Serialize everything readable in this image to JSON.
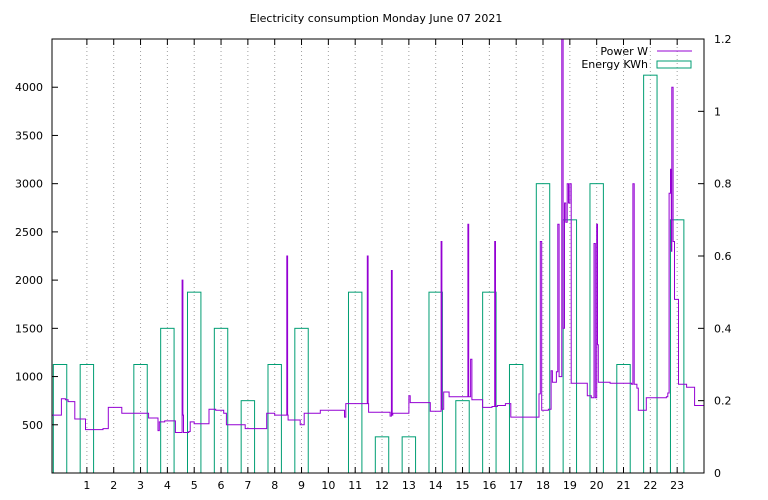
{
  "chart_data": {
    "type": "line",
    "title": "Electricity consumption Monday June 07 2021",
    "x_axis": {
      "range": [
        -0.3,
        24.0
      ],
      "ticks": [
        1,
        2,
        3,
        4,
        5,
        6,
        7,
        8,
        9,
        10,
        11,
        12,
        13,
        14,
        15,
        16,
        17,
        18,
        19,
        20,
        21,
        22,
        23
      ],
      "grid": true
    },
    "y_left": {
      "range": [
        0,
        4500
      ],
      "ticks": [
        500,
        1000,
        1500,
        2000,
        2500,
        3000,
        3500,
        4000
      ]
    },
    "y_right": {
      "range": [
        0,
        1.2
      ],
      "ticks": [
        "0",
        "0.2",
        "0.4",
        "0.6",
        "0.8",
        "1",
        "1.2"
      ],
      "tick_values": [
        0,
        0.2,
        0.4,
        0.6,
        0.8,
        1.0,
        1.2
      ]
    },
    "legend": {
      "position": "top-right"
    },
    "series": [
      {
        "name": "Power W",
        "color": "#9400d3",
        "axis": "left",
        "type": "step-line",
        "points": [
          [
            -0.3,
            600
          ],
          [
            0.0,
            600
          ],
          [
            0.05,
            770
          ],
          [
            0.2,
            760
          ],
          [
            0.3,
            740
          ],
          [
            0.5,
            740
          ],
          [
            0.55,
            560
          ],
          [
            0.9,
            560
          ],
          [
            0.95,
            450
          ],
          [
            1.2,
            450
          ],
          [
            1.6,
            460
          ],
          [
            1.8,
            680
          ],
          [
            2.2,
            680
          ],
          [
            2.3,
            620
          ],
          [
            2.5,
            620
          ],
          [
            3.2,
            620
          ],
          [
            3.3,
            570
          ],
          [
            3.6,
            570
          ],
          [
            3.65,
            440
          ],
          [
            3.7,
            530
          ],
          [
            3.9,
            540
          ],
          [
            4.2,
            540
          ],
          [
            4.3,
            420
          ],
          [
            4.5,
            420
          ],
          [
            4.55,
            2000
          ],
          [
            4.58,
            600
          ],
          [
            4.6,
            420
          ],
          [
            4.8,
            430
          ],
          [
            4.85,
            530
          ],
          [
            5.0,
            510
          ],
          [
            5.2,
            510
          ],
          [
            5.5,
            510
          ],
          [
            5.55,
            660
          ],
          [
            5.8,
            650
          ],
          [
            6.1,
            620
          ],
          [
            6.2,
            500
          ],
          [
            6.8,
            500
          ],
          [
            6.9,
            460
          ],
          [
            7.6,
            460
          ],
          [
            7.7,
            620
          ],
          [
            7.8,
            620
          ],
          [
            8.0,
            600
          ],
          [
            8.4,
            600
          ],
          [
            8.45,
            2250
          ],
          [
            8.48,
            600
          ],
          [
            8.5,
            550
          ],
          [
            8.9,
            550
          ],
          [
            8.95,
            500
          ],
          [
            9.1,
            620
          ],
          [
            9.5,
            620
          ],
          [
            9.7,
            650
          ],
          [
            10.5,
            650
          ],
          [
            10.6,
            580
          ],
          [
            10.65,
            720
          ],
          [
            11.4,
            720
          ],
          [
            11.45,
            2250
          ],
          [
            11.48,
            720
          ],
          [
            11.5,
            630
          ],
          [
            11.8,
            630
          ],
          [
            12.2,
            630
          ],
          [
            12.3,
            590
          ],
          [
            12.35,
            2100
          ],
          [
            12.38,
            600
          ],
          [
            12.4,
            620
          ],
          [
            12.9,
            620
          ],
          [
            13.0,
            800
          ],
          [
            13.05,
            730
          ],
          [
            13.7,
            730
          ],
          [
            13.8,
            640
          ],
          [
            14.1,
            640
          ],
          [
            14.2,
            2400
          ],
          [
            14.23,
            660
          ],
          [
            14.3,
            840
          ],
          [
            14.5,
            790
          ],
          [
            15.1,
            790
          ],
          [
            15.2,
            2580
          ],
          [
            15.23,
            790
          ],
          [
            15.3,
            1180
          ],
          [
            15.35,
            760
          ],
          [
            15.7,
            760
          ],
          [
            15.75,
            680
          ],
          [
            16.1,
            690
          ],
          [
            16.2,
            2400
          ],
          [
            16.23,
            690
          ],
          [
            16.3,
            700
          ],
          [
            16.6,
            720
          ],
          [
            16.8,
            580
          ],
          [
            17.8,
            580
          ],
          [
            17.85,
            820
          ],
          [
            17.9,
            2400
          ],
          [
            17.95,
            650
          ],
          [
            18.2,
            660
          ],
          [
            18.3,
            1060
          ],
          [
            18.35,
            940
          ],
          [
            18.5,
            1050
          ],
          [
            18.55,
            2580
          ],
          [
            18.6,
            1000
          ],
          [
            18.7,
            4500
          ],
          [
            18.75,
            1500
          ],
          [
            18.8,
            2800
          ],
          [
            18.85,
            2600
          ],
          [
            18.9,
            3000
          ],
          [
            18.95,
            2800
          ],
          [
            19.0,
            3000
          ],
          [
            19.05,
            930
          ],
          [
            19.6,
            930
          ],
          [
            19.65,
            800
          ],
          [
            19.8,
            780
          ],
          [
            19.9,
            2380
          ],
          [
            19.95,
            780
          ],
          [
            20.0,
            2580
          ],
          [
            20.03,
            1330
          ],
          [
            20.06,
            940
          ],
          [
            20.5,
            930
          ],
          [
            21.3,
            920
          ],
          [
            21.35,
            3000
          ],
          [
            21.4,
            920
          ],
          [
            21.5,
            880
          ],
          [
            21.55,
            650
          ],
          [
            21.8,
            650
          ],
          [
            21.85,
            780
          ],
          [
            22.6,
            790
          ],
          [
            22.65,
            830
          ],
          [
            22.7,
            2900
          ],
          [
            22.75,
            3150
          ],
          [
            22.78,
            2300
          ],
          [
            22.8,
            4000
          ],
          [
            22.85,
            2400
          ],
          [
            22.9,
            1800
          ],
          [
            23.0,
            1800
          ],
          [
            23.05,
            920
          ],
          [
            23.3,
            920
          ],
          [
            23.35,
            890
          ],
          [
            23.6,
            890
          ],
          [
            23.65,
            700
          ],
          [
            24.0,
            700
          ]
        ]
      },
      {
        "name": "Energy KWh",
        "color": "#009e73",
        "axis": "right",
        "type": "boxes",
        "bars": [
          [
            0.0,
            0.3
          ],
          [
            1.0,
            0.3
          ],
          [
            2.0,
            0.0
          ],
          [
            3.0,
            0.3
          ],
          [
            4.0,
            0.4
          ],
          [
            5.0,
            0.5
          ],
          [
            6.0,
            0.4
          ],
          [
            7.0,
            0.2
          ],
          [
            8.0,
            0.3
          ],
          [
            9.0,
            0.4
          ],
          [
            10.0,
            0.0
          ],
          [
            11.0,
            0.5
          ],
          [
            12.0,
            0.1
          ],
          [
            13.0,
            0.1
          ],
          [
            14.0,
            0.5
          ],
          [
            15.0,
            0.2
          ],
          [
            16.0,
            0.5
          ],
          [
            17.0,
            0.3
          ],
          [
            18.0,
            0.8
          ],
          [
            19.0,
            0.7
          ],
          [
            20.0,
            0.8
          ],
          [
            21.0,
            0.3
          ],
          [
            22.0,
            1.1
          ],
          [
            23.0,
            0.7
          ]
        ]
      }
    ]
  }
}
